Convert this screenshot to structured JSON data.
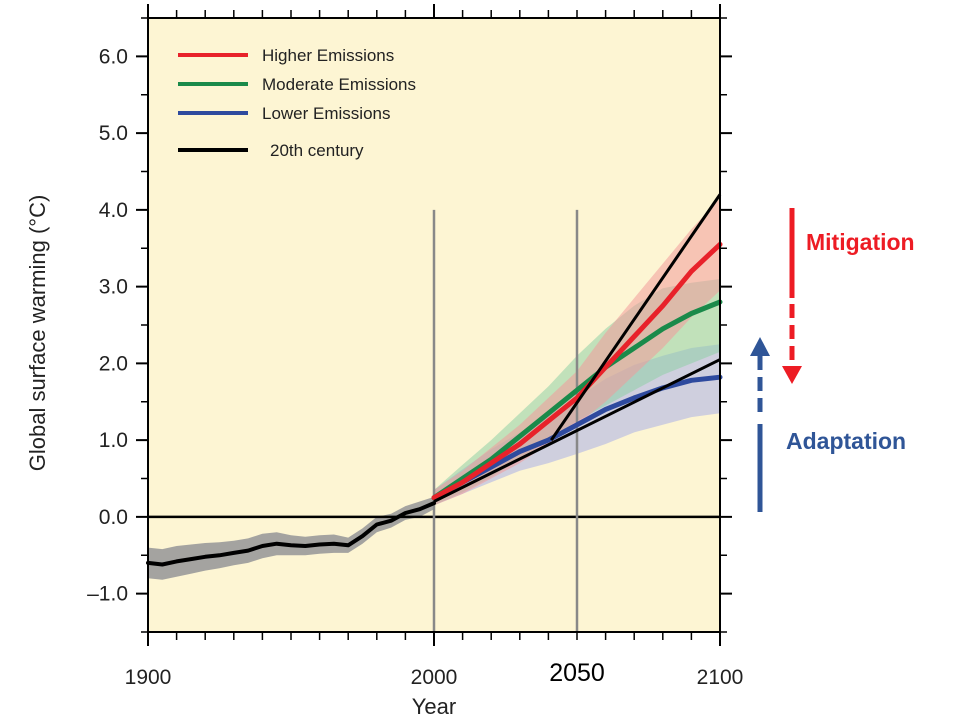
{
  "chart_data": {
    "type": "line",
    "xlabel": "Year",
    "ylabel": "Global surface warming (°C)",
    "xlim": [
      1900,
      2100
    ],
    "ylim": [
      -1.5,
      6.5
    ],
    "x_ticks": [
      1900,
      2000,
      2050,
      2100
    ],
    "x_tick_labels": [
      "1900",
      "2000",
      "2050",
      "2100"
    ],
    "y_ticks": [
      -1.0,
      0.0,
      1.0,
      2.0,
      3.0,
      4.0,
      5.0,
      6.0
    ],
    "y_tick_labels": [
      "–1.0",
      "0.0",
      "1.0",
      "2.0",
      "3.0",
      "4.0",
      "5.0",
      "6.0"
    ],
    "grid": false,
    "background_color": "#fdf5d3",
    "legend_position": "top-left",
    "legend": [
      "Higher Emissions",
      "Moderate Emissions",
      "Lower Emissions",
      "20th century"
    ],
    "reference_lines": {
      "horizontal_y": 0.0,
      "vertical_x": [
        2000,
        2050
      ]
    },
    "trend_lines": [
      {
        "from": [
          2000,
          0.2
        ],
        "to": [
          2100,
          2.05
        ]
      },
      {
        "from": [
          2041,
          1.0
        ],
        "to": [
          2100,
          4.2
        ]
      }
    ],
    "series": [
      {
        "name": "20th century",
        "color": "#000000",
        "band_color": "#9a9a9a",
        "x": [
          1900,
          1905,
          1910,
          1915,
          1920,
          1925,
          1930,
          1935,
          1940,
          1945,
          1950,
          1955,
          1960,
          1965,
          1970,
          1975,
          1980,
          1985,
          1990,
          1995,
          2000
        ],
        "y": [
          -0.6,
          -0.62,
          -0.58,
          -0.55,
          -0.52,
          -0.5,
          -0.47,
          -0.44,
          -0.38,
          -0.35,
          -0.37,
          -0.38,
          -0.36,
          -0.35,
          -0.37,
          -0.25,
          -0.1,
          -0.05,
          0.05,
          0.1,
          0.18
        ],
        "lower": [
          -0.8,
          -0.82,
          -0.78,
          -0.74,
          -0.7,
          -0.67,
          -0.63,
          -0.6,
          -0.54,
          -0.5,
          -0.5,
          -0.5,
          -0.48,
          -0.47,
          -0.47,
          -0.35,
          -0.2,
          -0.14,
          -0.04,
          0.0,
          0.1
        ],
        "upper": [
          -0.4,
          -0.42,
          -0.38,
          -0.36,
          -0.34,
          -0.33,
          -0.31,
          -0.28,
          -0.22,
          -0.2,
          -0.24,
          -0.26,
          -0.24,
          -0.23,
          -0.27,
          -0.15,
          0.0,
          0.04,
          0.14,
          0.2,
          0.26
        ]
      },
      {
        "name": "Higher Emissions",
        "color": "#e8222a",
        "band_color": "#f29a9a",
        "x": [
          2000,
          2010,
          2020,
          2030,
          2040,
          2050,
          2060,
          2070,
          2080,
          2090,
          2100
        ],
        "y": [
          0.25,
          0.45,
          0.7,
          0.95,
          1.25,
          1.55,
          1.95,
          2.35,
          2.75,
          3.2,
          3.55
        ],
        "lower": [
          0.15,
          0.3,
          0.5,
          0.7,
          0.95,
          1.2,
          1.5,
          1.85,
          2.2,
          2.6,
          2.95
        ],
        "upper": [
          0.35,
          0.6,
          0.9,
          1.2,
          1.55,
          1.9,
          2.4,
          2.85,
          3.3,
          3.75,
          4.15
        ]
      },
      {
        "name": "Moderate Emissions",
        "color": "#1a8a4a",
        "band_color": "#8fd0a6",
        "x": [
          2000,
          2010,
          2020,
          2030,
          2040,
          2050,
          2060,
          2070,
          2080,
          2090,
          2100
        ],
        "y": [
          0.25,
          0.5,
          0.75,
          1.05,
          1.35,
          1.65,
          1.95,
          2.2,
          2.45,
          2.65,
          2.8
        ],
        "lower": [
          0.15,
          0.32,
          0.52,
          0.75,
          1.0,
          1.25,
          1.45,
          1.65,
          1.85,
          2.0,
          2.15
        ],
        "upper": [
          0.35,
          0.68,
          1.0,
          1.35,
          1.7,
          2.1,
          2.45,
          2.75,
          2.98,
          3.05,
          3.1
        ]
      },
      {
        "name": "Lower Emissions",
        "color": "#2e4a9e",
        "band_color": "#a9aee8",
        "x": [
          2000,
          2010,
          2020,
          2030,
          2040,
          2050,
          2060,
          2070,
          2080,
          2090,
          2100
        ],
        "y": [
          0.25,
          0.45,
          0.65,
          0.85,
          1.0,
          1.2,
          1.4,
          1.55,
          1.68,
          1.78,
          1.82
        ],
        "lower": [
          0.15,
          0.3,
          0.45,
          0.6,
          0.7,
          0.82,
          0.95,
          1.1,
          1.2,
          1.3,
          1.35
        ],
        "upper": [
          0.35,
          0.62,
          0.88,
          1.1,
          1.32,
          1.55,
          1.8,
          1.98,
          2.1,
          2.2,
          2.25
        ]
      }
    ]
  },
  "annotations": {
    "mitigation": {
      "label": "Mitigation",
      "color": "#ed1c24",
      "direction": "down"
    },
    "adaptation": {
      "label": "Adaptation",
      "color": "#2f5597",
      "direction": "up"
    }
  }
}
